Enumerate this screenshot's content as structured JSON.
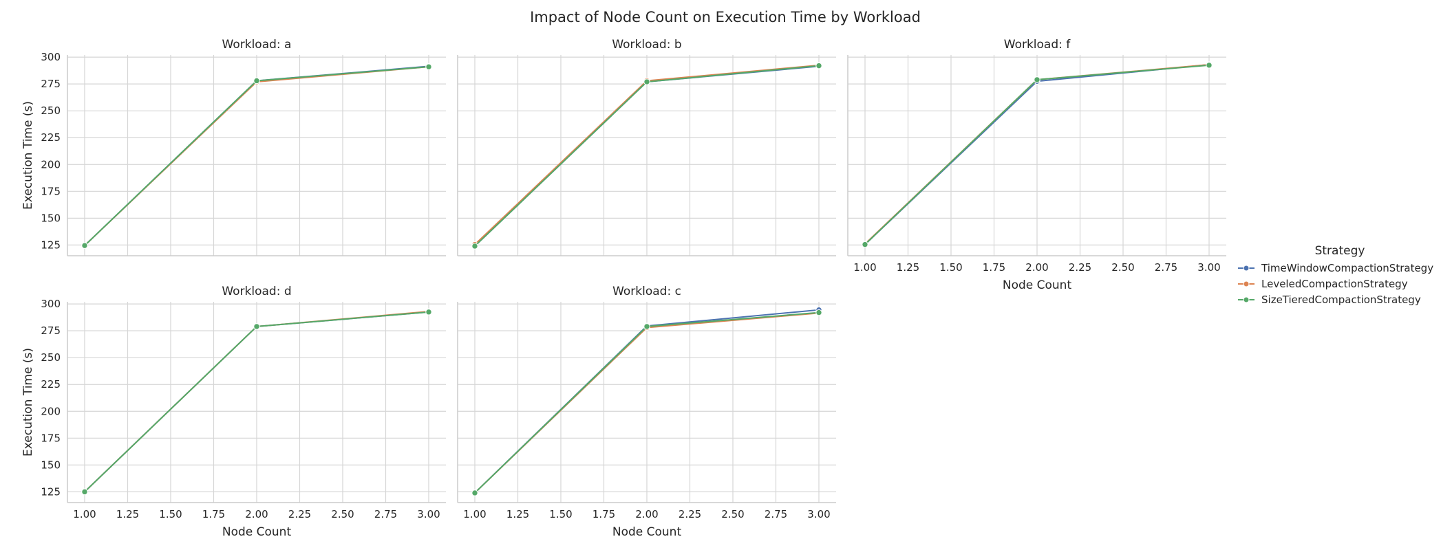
{
  "figure": {
    "title": "Impact of Node Count on Execution Time by Workload"
  },
  "legend": {
    "title": "Strategy",
    "placement": "center-right, outside plot area"
  },
  "chart_data": {
    "type": "line",
    "title": "Impact of Node Count on Execution Time by Workload",
    "xlabel": "Node Count",
    "ylabel": "Execution Time (s)",
    "xlim": [
      0.9,
      3.1
    ],
    "ylim": [
      115,
      302
    ],
    "x_ticks": [
      1.0,
      1.25,
      1.5,
      1.75,
      2.0,
      2.25,
      2.5,
      2.75,
      3.0
    ],
    "x_tick_labels": [
      "1.00",
      "1.25",
      "1.50",
      "1.75",
      "2.00",
      "2.25",
      "2.50",
      "2.75",
      "3.00"
    ],
    "y_ticks": [
      125,
      150,
      175,
      200,
      225,
      250,
      275,
      300
    ],
    "grid": true,
    "marker": "circle",
    "series_styles": [
      {
        "name": "TimeWindowCompactionStrategy",
        "color": "#4c72b0"
      },
      {
        "name": "LeveledCompactionStrategy",
        "color": "#dd8452"
      },
      {
        "name": "SizeTieredCompactionStrategy",
        "color": "#55a868"
      }
    ],
    "panels": [
      {
        "title": "Workload: a",
        "x": [
          1,
          2,
          3
        ],
        "series": [
          {
            "name": "TimeWindowCompactionStrategy",
            "values": [
              124.5,
              278.0,
              291.5
            ]
          },
          {
            "name": "LeveledCompactionStrategy",
            "values": [
              124.5,
              277.0,
              291.0
            ]
          },
          {
            "name": "SizeTieredCompactionStrategy",
            "values": [
              124.5,
              278.0,
              291.0
            ]
          }
        ]
      },
      {
        "title": "Workload: b",
        "x": [
          1,
          2,
          3
        ],
        "series": [
          {
            "name": "TimeWindowCompactionStrategy",
            "values": [
              124.0,
              277.0,
              291.5
            ]
          },
          {
            "name": "LeveledCompactionStrategy",
            "values": [
              125.5,
              278.0,
              292.5
            ]
          },
          {
            "name": "SizeTieredCompactionStrategy",
            "values": [
              124.0,
              277.0,
              292.0
            ]
          }
        ]
      },
      {
        "title": "Workload: f",
        "x": [
          1,
          2,
          3
        ],
        "series": [
          {
            "name": "TimeWindowCompactionStrategy",
            "values": [
              125.5,
              277.5,
              293.0
            ]
          },
          {
            "name": "LeveledCompactionStrategy",
            "values": [
              126.0,
              279.0,
              293.0
            ]
          },
          {
            "name": "SizeTieredCompactionStrategy",
            "values": [
              125.5,
              279.0,
              292.5
            ]
          }
        ]
      },
      {
        "title": "Workload: d",
        "x": [
          1,
          2,
          3
        ],
        "series": [
          {
            "name": "TimeWindowCompactionStrategy",
            "values": [
              125.0,
              279.0,
              292.5
            ]
          },
          {
            "name": "LeveledCompactionStrategy",
            "values": [
              125.0,
              279.0,
              293.0
            ]
          },
          {
            "name": "SizeTieredCompactionStrategy",
            "values": [
              125.0,
              279.0,
              292.5
            ]
          }
        ]
      },
      {
        "title": "Workload: c",
        "x": [
          1,
          2,
          3
        ],
        "series": [
          {
            "name": "TimeWindowCompactionStrategy",
            "values": [
              124.0,
              279.5,
              294.5
            ]
          },
          {
            "name": "LeveledCompactionStrategy",
            "values": [
              124.0,
              278.0,
              291.5
            ]
          },
          {
            "name": "SizeTieredCompactionStrategy",
            "values": [
              124.0,
              279.0,
              292.0
            ]
          }
        ]
      }
    ]
  }
}
